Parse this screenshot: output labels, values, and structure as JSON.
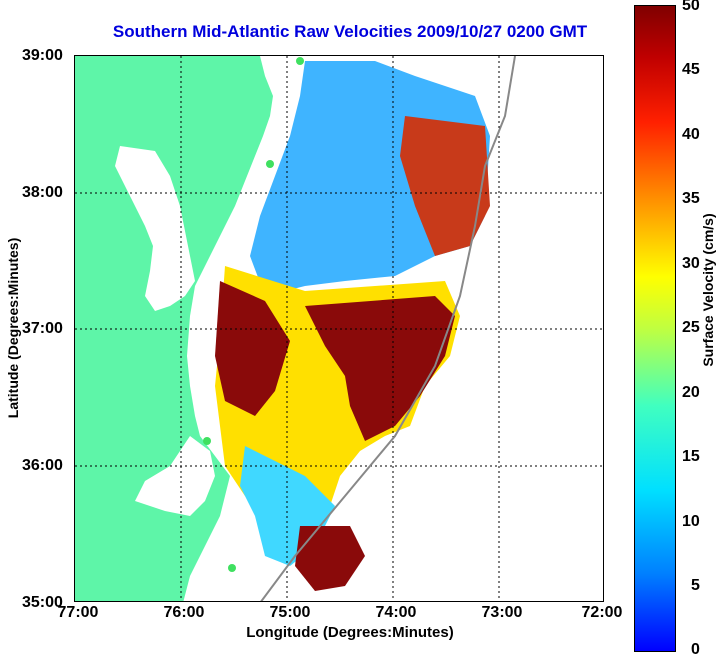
{
  "title": "Southern Mid-Atlantic Raw Velocities 2009/10/27 0200 GMT",
  "xlabel": "Longitude (Degrees:Minutes)",
  "ylabel": "Latitude (Degrees:Minutes)",
  "x_ticks": [
    "77:00",
    "76:00",
    "75:00",
    "74:00",
    "73:00",
    "72:00"
  ],
  "y_ticks": [
    "39:00",
    "38:00",
    "37:00",
    "36:00",
    "35:00"
  ],
  "colorbar": {
    "label": "Surface Velocity (cm/s)",
    "ticks": [
      "50",
      "45",
      "40",
      "35",
      "30",
      "25",
      "20",
      "15",
      "10",
      "5",
      "0"
    ],
    "range": [
      0,
      50
    ]
  },
  "map": {
    "lon_range": [
      -77,
      -72
    ],
    "lat_range": [
      35,
      39
    ],
    "land_color": "#5ef5a8",
    "grid": "dotted"
  }
}
